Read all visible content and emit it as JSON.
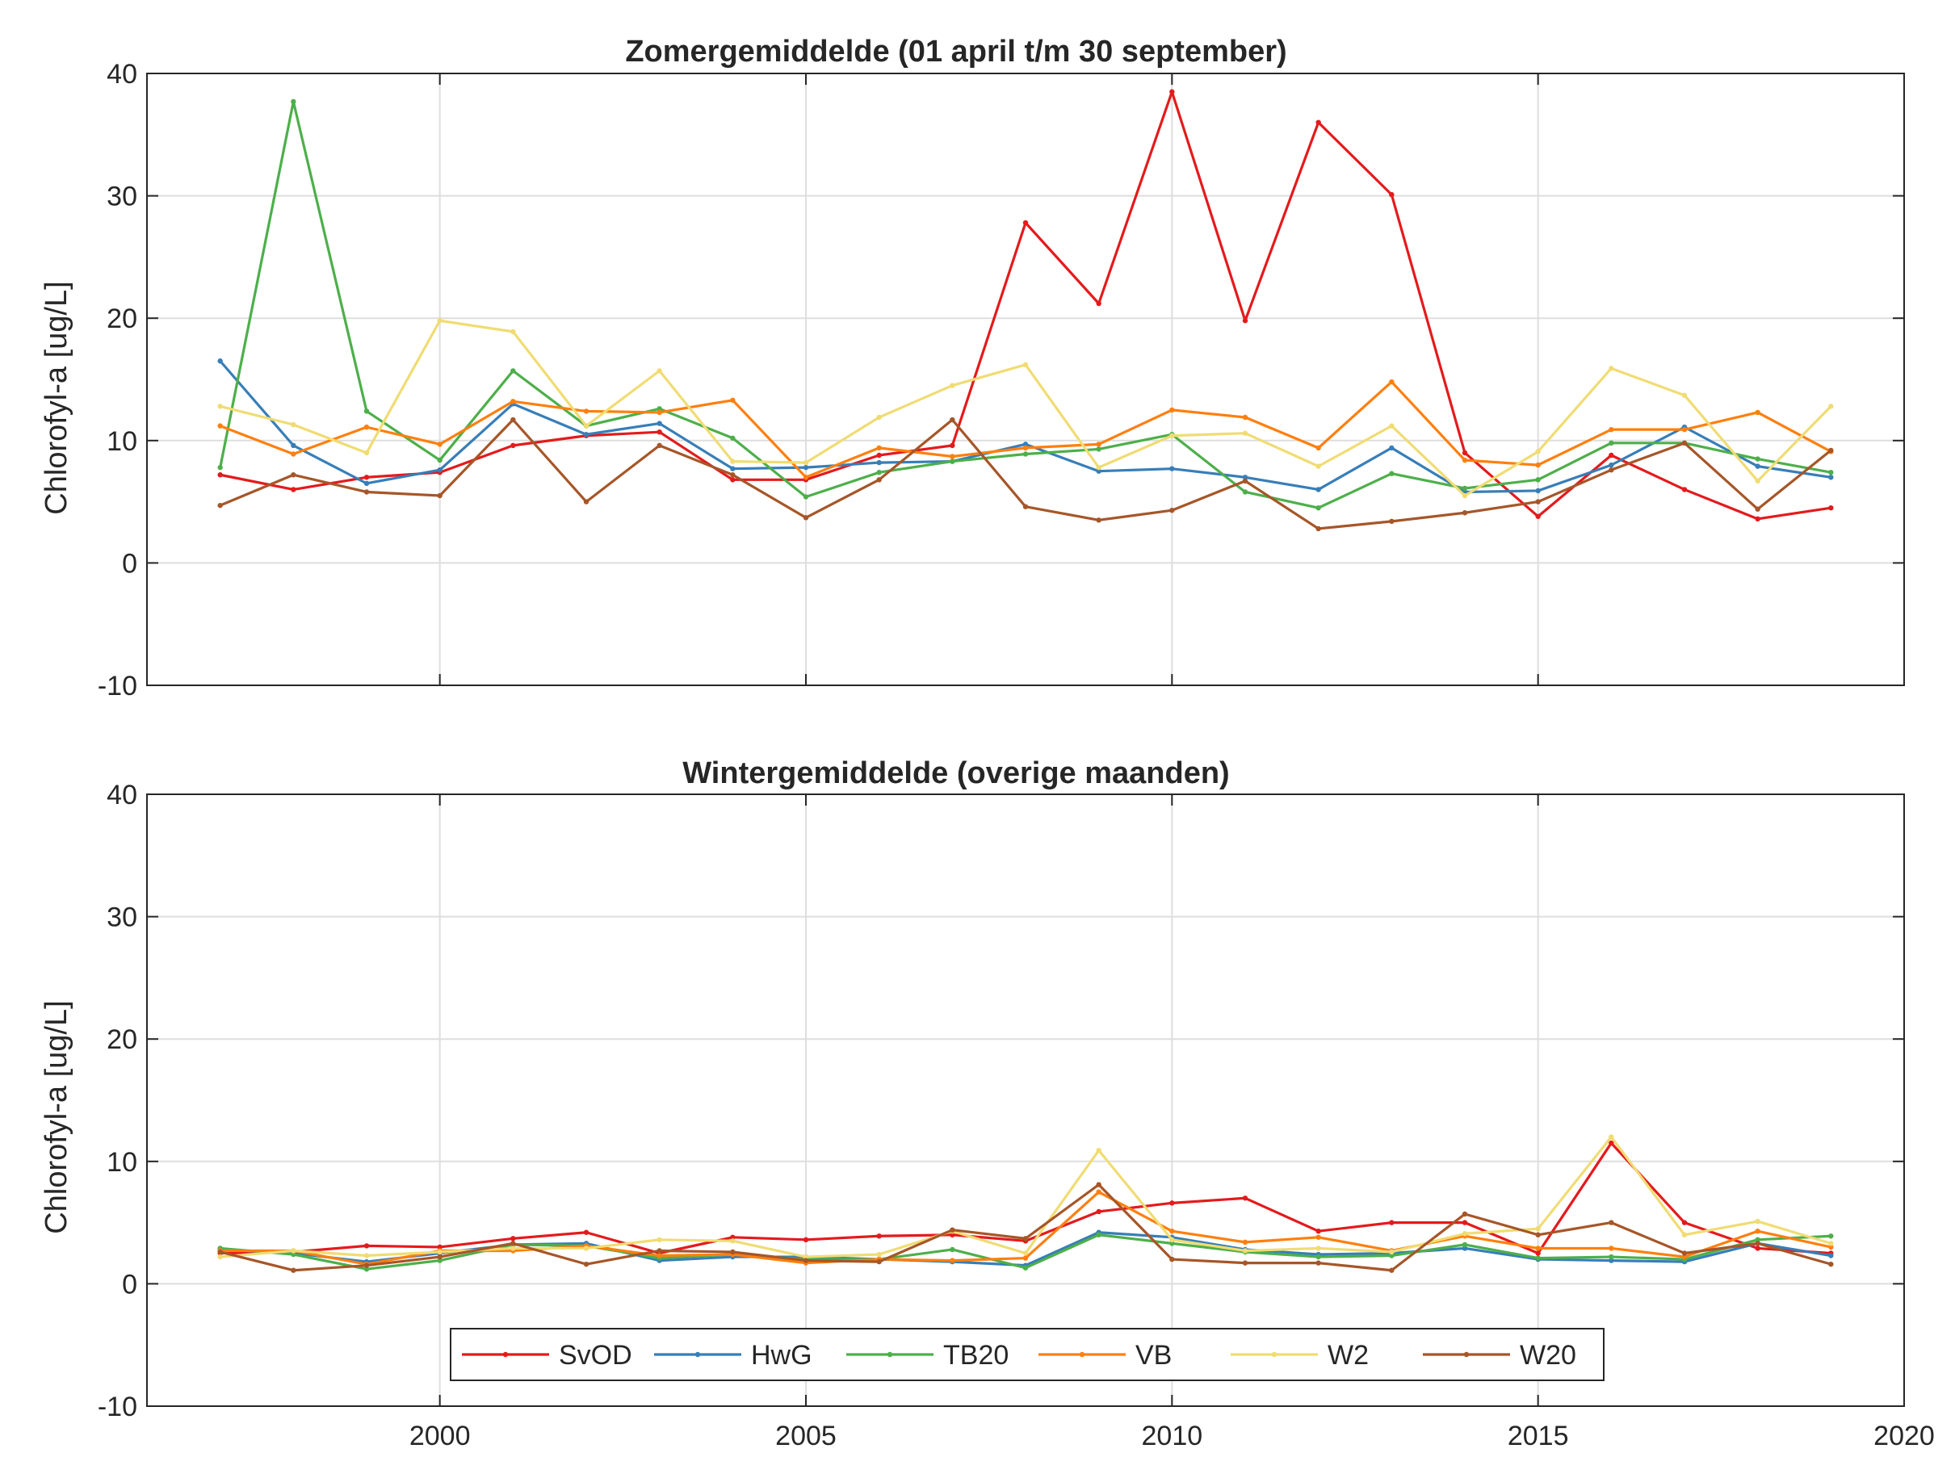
{
  "chart_data": [
    {
      "type": "line",
      "title": "Zomergemiddelde (01 april t/m 30 september)",
      "xlabel": "",
      "ylabel": "Chlorofyl-a [ug/L]",
      "xlim": [
        1996,
        2020
      ],
      "ylim": [
        -10,
        40
      ],
      "xticks": [
        2000,
        2005,
        2010,
        2015,
        2020
      ],
      "yticks": [
        -10,
        0,
        10,
        20,
        30,
        40
      ],
      "show_xtick_labels": false,
      "grid": true,
      "x": [
        1997,
        1998,
        1999,
        2000,
        2001,
        2002,
        2003,
        2004,
        2005,
        2006,
        2007,
        2008,
        2009,
        2010,
        2011,
        2012,
        2013,
        2014,
        2015,
        2016,
        2017,
        2018,
        2019
      ],
      "series": [
        {
          "name": "SvOD",
          "color": "#e41a1c",
          "values": [
            7.2,
            6.0,
            7.0,
            7.4,
            9.6,
            10.4,
            10.7,
            6.8,
            6.8,
            8.8,
            9.6,
            27.8,
            21.2,
            38.5,
            19.8,
            36.0,
            30.1,
            9.0,
            3.8,
            8.8,
            6.0,
            3.6,
            4.5
          ]
        },
        {
          "name": "HwG",
          "color": "#377eb8",
          "values": [
            16.5,
            9.6,
            6.5,
            7.6,
            13.0,
            10.5,
            11.4,
            7.7,
            7.8,
            8.2,
            8.3,
            9.7,
            7.5,
            7.7,
            7.0,
            6.0,
            9.4,
            5.8,
            5.9,
            8.0,
            11.1,
            7.9,
            7.0
          ]
        },
        {
          "name": "TB20",
          "color": "#4daf4a",
          "values": [
            7.8,
            37.7,
            12.4,
            8.4,
            15.7,
            11.2,
            12.6,
            10.2,
            5.4,
            7.4,
            8.3,
            8.9,
            9.3,
            10.5,
            5.8,
            4.5,
            7.3,
            6.1,
            6.8,
            9.8,
            9.8,
            8.5,
            7.4
          ]
        },
        {
          "name": "VB",
          "color": "#ff7f0e",
          "values": [
            11.2,
            8.9,
            11.1,
            9.7,
            13.2,
            12.4,
            12.3,
            13.3,
            7.0,
            9.4,
            8.7,
            9.4,
            9.7,
            12.5,
            11.9,
            9.4,
            14.8,
            8.4,
            8.0,
            10.9,
            10.9,
            12.3,
            9.1
          ]
        },
        {
          "name": "W2",
          "color": "#f0dc73",
          "values": [
            12.8,
            11.3,
            9.0,
            19.8,
            18.9,
            11.2,
            15.7,
            8.3,
            8.2,
            11.9,
            14.5,
            16.2,
            7.8,
            10.4,
            10.6,
            7.9,
            11.2,
            5.5,
            9.1,
            15.9,
            13.7,
            6.7,
            12.8
          ]
        },
        {
          "name": "W20",
          "color": "#a65628",
          "values": [
            4.7,
            7.2,
            5.8,
            5.5,
            11.7,
            5.0,
            9.6,
            7.2,
            3.7,
            6.8,
            11.7,
            4.6,
            3.5,
            4.3,
            6.7,
            2.8,
            3.4,
            4.1,
            5.0,
            7.6,
            9.8,
            4.4,
            9.2
          ]
        }
      ]
    },
    {
      "type": "line",
      "title": "Wintergemiddelde (overige maanden)",
      "xlabel": "",
      "ylabel": "Chlorofyl-a [ug/L]",
      "xlim": [
        1996,
        2020
      ],
      "ylim": [
        -10,
        40
      ],
      "xticks": [
        2000,
        2005,
        2010,
        2015,
        2020
      ],
      "yticks": [
        -10,
        0,
        10,
        20,
        30,
        40
      ],
      "show_xtick_labels": true,
      "grid": true,
      "legend_position": "bottom-center",
      "x": [
        1997,
        1998,
        1999,
        2000,
        2001,
        2002,
        2003,
        2004,
        2005,
        2006,
        2007,
        2008,
        2009,
        2010,
        2011,
        2012,
        2013,
        2014,
        2015,
        2016,
        2017,
        2018,
        2019
      ],
      "series": [
        {
          "name": "SvOD",
          "color": "#e41a1c",
          "values": [
            2.5,
            2.6,
            3.1,
            3.0,
            3.7,
            4.2,
            2.5,
            3.8,
            3.6,
            3.9,
            4.0,
            3.5,
            5.9,
            6.6,
            7.0,
            4.3,
            5.0,
            5.0,
            2.5,
            11.5,
            5.0,
            2.9,
            2.5
          ]
        },
        {
          "name": "HwG",
          "color": "#377eb8",
          "values": [
            2.8,
            2.5,
            1.8,
            2.5,
            3.2,
            3.3,
            1.9,
            2.2,
            2.2,
            2.0,
            1.8,
            1.5,
            4.2,
            3.8,
            2.8,
            2.4,
            2.5,
            2.9,
            2.0,
            1.9,
            1.8,
            3.3,
            2.3
          ]
        },
        {
          "name": "TB20",
          "color": "#4daf4a",
          "values": [
            2.9,
            2.4,
            1.2,
            1.9,
            3.2,
            3.1,
            2.1,
            2.4,
            2.0,
            2.0,
            2.8,
            1.3,
            4.0,
            3.3,
            2.6,
            2.2,
            2.3,
            3.2,
            2.1,
            2.2,
            2.0,
            3.6,
            3.9
          ]
        },
        {
          "name": "VB",
          "color": "#ff7f0e",
          "values": [
            2.7,
            2.7,
            1.6,
            2.7,
            2.7,
            3.1,
            2.3,
            2.4,
            1.7,
            2.0,
            1.9,
            2.1,
            7.5,
            4.3,
            3.4,
            3.8,
            2.7,
            3.9,
            2.9,
            2.9,
            2.2,
            4.3,
            3.0
          ]
        },
        {
          "name": "W2",
          "color": "#f0dc73",
          "values": [
            2.2,
            2.7,
            2.3,
            2.6,
            2.9,
            2.9,
            3.6,
            3.5,
            2.2,
            2.4,
            4.3,
            2.5,
            10.9,
            3.6,
            2.7,
            2.9,
            2.6,
            4.1,
            4.5,
            12.0,
            4.0,
            5.1,
            3.3
          ]
        },
        {
          "name": "W20",
          "color": "#a65628",
          "values": [
            2.6,
            1.1,
            1.5,
            2.2,
            3.3,
            1.6,
            2.7,
            2.6,
            1.9,
            1.8,
            4.4,
            3.7,
            8.1,
            2.0,
            1.7,
            1.7,
            1.1,
            5.7,
            4.0,
            5.0,
            2.5,
            3.3,
            1.6
          ]
        }
      ]
    }
  ]
}
